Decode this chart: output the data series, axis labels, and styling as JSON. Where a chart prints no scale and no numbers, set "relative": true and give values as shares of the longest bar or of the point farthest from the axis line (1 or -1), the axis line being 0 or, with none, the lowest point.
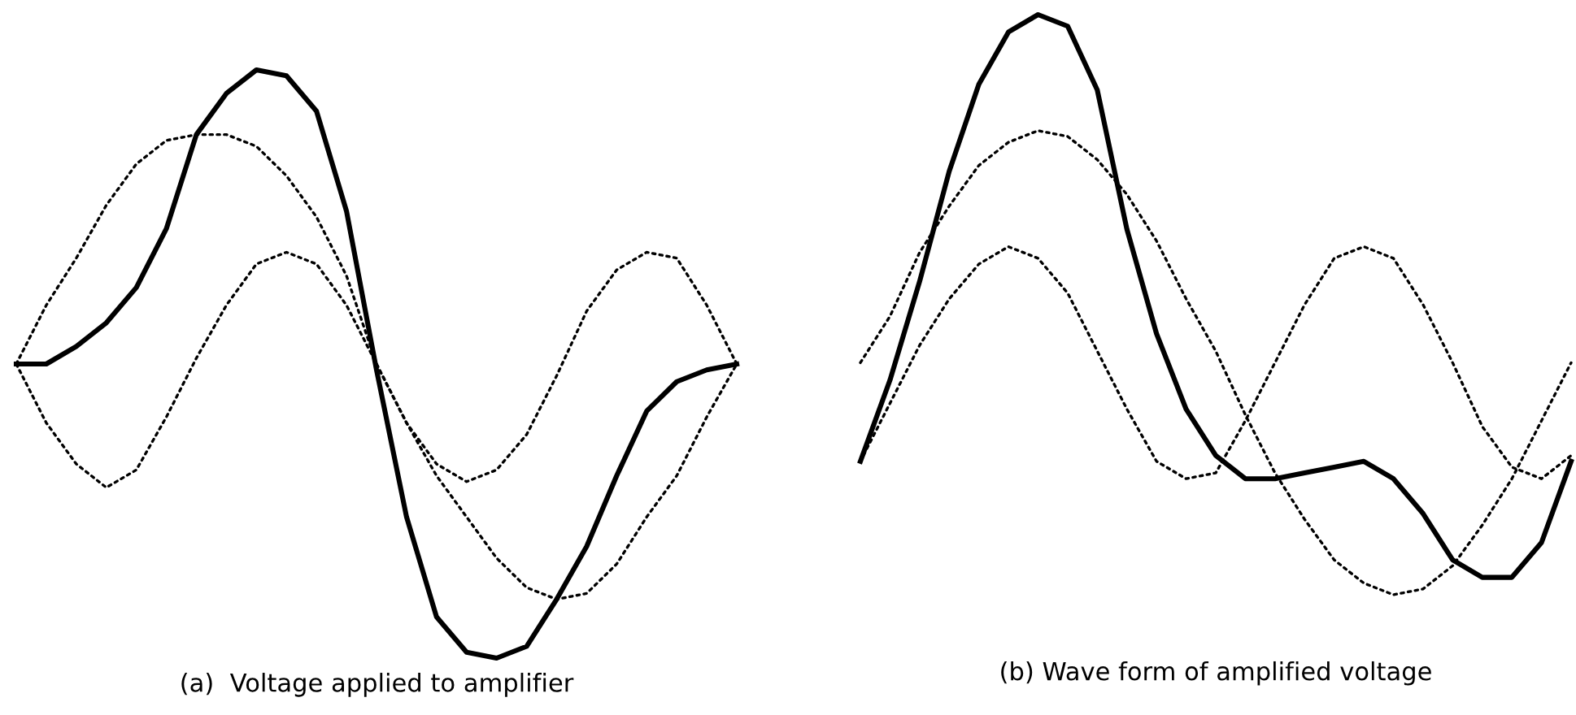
{
  "chart_data": [
    {
      "type": "line",
      "relative": true,
      "xlabel": "(a)  Voltage applied to amplifier",
      "categories": [
        null,
        null,
        null,
        null,
        null,
        null,
        null,
        null,
        null,
        null,
        null,
        null,
        null,
        null,
        null,
        null,
        null,
        null,
        null,
        null,
        null,
        null,
        null,
        null,
        null
      ],
      "series": [
        {
          "color": "#000000",
          "line_style": "solid",
          "values": [
            0.5,
            0.5,
            0.53,
            0.57,
            0.63,
            0.73,
            0.89,
            0.96,
            1.0,
            0.99,
            0.93,
            0.76,
            0.49,
            0.24,
            0.07,
            0.01,
            0.0,
            0.02,
            0.1,
            0.19,
            0.31,
            0.42,
            0.47,
            0.49,
            0.5
          ]
        },
        {
          "color": "#000000",
          "line_style": "dotted",
          "values": [
            0.5,
            0.6,
            0.68,
            0.77,
            0.84,
            0.88,
            0.89,
            0.89,
            0.87,
            0.82,
            0.75,
            0.65,
            0.5,
            0.4,
            0.31,
            0.24,
            0.17,
            0.12,
            0.1,
            0.11,
            0.16,
            0.24,
            0.31,
            0.41,
            0.5
          ]
        },
        {
          "color": "#000000",
          "line_style": "dotted",
          "values": [
            0.5,
            0.4,
            0.33,
            0.29,
            0.32,
            0.41,
            0.51,
            0.6,
            0.67,
            0.69,
            0.67,
            0.6,
            0.5,
            0.4,
            0.33,
            0.3,
            0.32,
            0.38,
            0.48,
            0.59,
            0.66,
            0.69,
            0.68,
            0.6,
            0.5
          ]
        }
      ]
    },
    {
      "type": "line",
      "relative": true,
      "xlabel": "(b) Wave form of amplified voltage",
      "categories": [
        null,
        null,
        null,
        null,
        null,
        null,
        null,
        null,
        null,
        null,
        null,
        null,
        null,
        null,
        null,
        null,
        null,
        null,
        null,
        null,
        null,
        null,
        null,
        null,
        null
      ],
      "series": [
        {
          "color": "#000000",
          "line_style": "solid",
          "values": [
            0.23,
            0.37,
            0.54,
            0.73,
            0.88,
            0.97,
            1.0,
            0.98,
            0.87,
            0.63,
            0.45,
            0.32,
            0.24,
            0.2,
            0.2,
            0.21,
            0.22,
            0.23,
            0.2,
            0.14,
            0.06,
            0.03,
            0.03,
            0.09,
            0.23
          ]
        },
        {
          "color": "#000000",
          "line_style": "dotted",
          "values": [
            0.4,
            0.48,
            0.59,
            0.67,
            0.74,
            0.78,
            0.8,
            0.79,
            0.75,
            0.69,
            0.61,
            0.51,
            0.42,
            0.31,
            0.21,
            0.13,
            0.06,
            0.02,
            0.0,
            0.01,
            0.05,
            0.12,
            0.2,
            0.3,
            0.4
          ]
        },
        {
          "color": "#000000",
          "line_style": "dotted",
          "values": [
            0.23,
            0.33,
            0.43,
            0.51,
            0.57,
            0.6,
            0.58,
            0.52,
            0.42,
            0.32,
            0.23,
            0.2,
            0.21,
            0.3,
            0.4,
            0.5,
            0.58,
            0.6,
            0.58,
            0.5,
            0.4,
            0.29,
            0.22,
            0.2,
            0.24
          ]
        }
      ]
    }
  ]
}
